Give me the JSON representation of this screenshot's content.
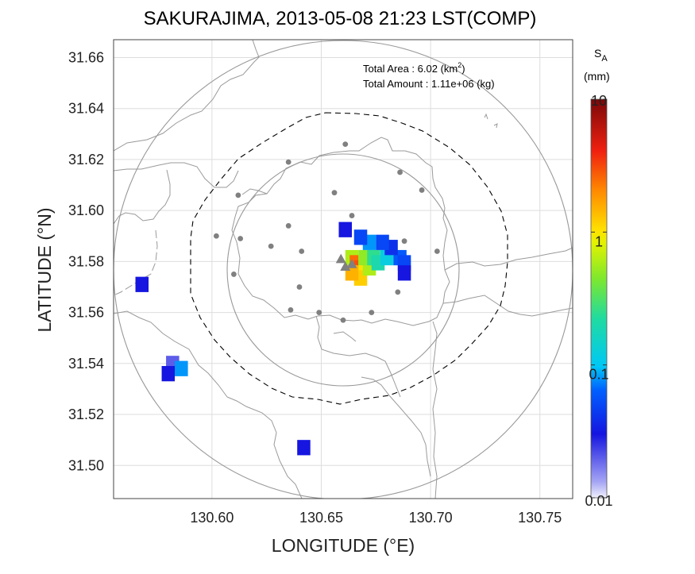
{
  "title": "SAKURAJIMA, 2013-05-08 21:23 LST(COMP)",
  "x_axis": {
    "label": "LONGITUDE (°E)",
    "range": [
      130.555,
      130.765
    ],
    "ticks": [
      "130.60",
      "130.65",
      "130.70",
      "130.75"
    ],
    "tick_values": [
      130.6,
      130.65,
      130.7,
      130.75
    ]
  },
  "y_axis": {
    "label": "LATITUDE (°N)",
    "range": [
      31.487,
      31.667
    ],
    "ticks": [
      "31.50",
      "31.52",
      "31.54",
      "31.56",
      "31.58",
      "31.60",
      "31.62",
      "31.64",
      "31.66"
    ],
    "tick_values": [
      31.5,
      31.52,
      31.54,
      31.56,
      31.58,
      31.6,
      31.62,
      31.64,
      31.66
    ]
  },
  "info": {
    "area_prefix": "Total Area   : 6.02 (km",
    "area_sup": "2",
    "area_suffix": ")",
    "amount": "Total Amount : 1.11e+06 (kg)"
  },
  "colorbar": {
    "title_main": "S",
    "title_sub": "A",
    "unit": "(mm)",
    "scale": "log",
    "range": [
      0.01,
      10
    ],
    "ticks": [
      "10",
      "1",
      "0.1",
      "0.01"
    ],
    "tick_values": [
      10,
      1,
      0.1,
      0.01
    ]
  },
  "colors": {
    "gridline": "#dddddd",
    "coastline": "#999999",
    "range_circle": "#999999",
    "dashed_boundary": "#000000",
    "station": "#808080"
  },
  "chart_data": {
    "type": "heatmap",
    "title": "SAKURAJIMA, 2013-05-08 21:23 LST(COMP)",
    "xlabel": "LONGITUDE (°E)",
    "ylabel": "LATITUDE (°N)",
    "xlim": [
      130.555,
      130.765
    ],
    "ylim": [
      31.487,
      31.667
    ],
    "colorbar_scale": "log",
    "colorbar_range_mm": [
      0.01,
      10
    ],
    "total_area_km2": 6.02,
    "total_amount_kg": 1110000.0,
    "range_circles": [
      {
        "center_lon": 130.658,
        "center_lat": 31.578,
        "radius_deg_lon": 0.105
      },
      {
        "center_lon": 130.658,
        "center_lat": 31.578,
        "radius_deg_lon": 0.208
      }
    ],
    "vent_markers": [
      {
        "lon": 130.659,
        "lat": 31.581
      },
      {
        "lon": 130.661,
        "lat": 31.578
      },
      {
        "lon": 130.664,
        "lat": 31.579
      }
    ],
    "stations": [
      {
        "lon": 130.661,
        "lat": 31.626
      },
      {
        "lon": 130.635,
        "lat": 31.619
      },
      {
        "lon": 130.686,
        "lat": 31.615
      },
      {
        "lon": 130.612,
        "lat": 31.606
      },
      {
        "lon": 130.656,
        "lat": 31.607
      },
      {
        "lon": 130.696,
        "lat": 31.608
      },
      {
        "lon": 130.664,
        "lat": 31.598
      },
      {
        "lon": 130.602,
        "lat": 31.59
      },
      {
        "lon": 130.613,
        "lat": 31.589
      },
      {
        "lon": 130.635,
        "lat": 31.594
      },
      {
        "lon": 130.627,
        "lat": 31.586
      },
      {
        "lon": 130.641,
        "lat": 31.584
      },
      {
        "lon": 130.688,
        "lat": 31.588
      },
      {
        "lon": 130.703,
        "lat": 31.584
      },
      {
        "lon": 130.61,
        "lat": 31.575
      },
      {
        "lon": 130.64,
        "lat": 31.57
      },
      {
        "lon": 130.685,
        "lat": 31.568
      },
      {
        "lon": 130.636,
        "lat": 31.561
      },
      {
        "lon": 130.649,
        "lat": 31.56
      },
      {
        "lon": 130.673,
        "lat": 31.56
      },
      {
        "lon": 130.66,
        "lat": 31.557
      }
    ],
    "ash_cells": [
      {
        "lon": 130.662,
        "lat": 31.5835,
        "mm": 0.6
      },
      {
        "lon": 130.664,
        "lat": 31.5815,
        "mm": 2.5
      },
      {
        "lon": 130.666,
        "lat": 31.5795,
        "mm": 3.0
      },
      {
        "lon": 130.664,
        "lat": 31.5775,
        "mm": 2.0
      },
      {
        "lon": 130.666,
        "lat": 31.5755,
        "mm": 1.2
      },
      {
        "lon": 130.662,
        "lat": 31.5775,
        "mm": 1.5
      },
      {
        "lon": 130.668,
        "lat": 31.5815,
        "mm": 1.0
      },
      {
        "lon": 130.67,
        "lat": 31.5795,
        "mm": 0.6
      },
      {
        "lon": 130.668,
        "lat": 31.5835,
        "mm": 0.5
      },
      {
        "lon": 130.672,
        "lat": 31.5835,
        "mm": 0.25
      },
      {
        "lon": 130.674,
        "lat": 31.5815,
        "mm": 0.2
      },
      {
        "lon": 130.678,
        "lat": 31.5835,
        "mm": 0.12
      },
      {
        "lon": 130.684,
        "lat": 31.5835,
        "mm": 0.06
      },
      {
        "lon": 130.686,
        "lat": 31.5815,
        "mm": 0.05
      },
      {
        "lon": 130.68,
        "lat": 31.5875,
        "mm": 0.04
      },
      {
        "lon": 130.676,
        "lat": 31.5895,
        "mm": 0.05
      },
      {
        "lon": 130.67,
        "lat": 31.5895,
        "mm": 0.08
      },
      {
        "lon": 130.666,
        "lat": 31.5915,
        "mm": 0.05
      },
      {
        "lon": 130.659,
        "lat": 31.5945,
        "mm": 0.03
      },
      {
        "lon": 130.686,
        "lat": 31.5775,
        "mm": 0.03
      },
      {
        "lon": 130.58,
        "lat": 31.542,
        "mm": 0.02
      },
      {
        "lon": 130.584,
        "lat": 31.54,
        "mm": 0.08
      },
      {
        "lon": 130.578,
        "lat": 31.538,
        "mm": 0.03
      },
      {
        "lon": 130.64,
        "lat": 31.509,
        "mm": 0.03
      },
      {
        "lon": 130.566,
        "lat": 31.573,
        "mm": 0.03
      }
    ]
  }
}
